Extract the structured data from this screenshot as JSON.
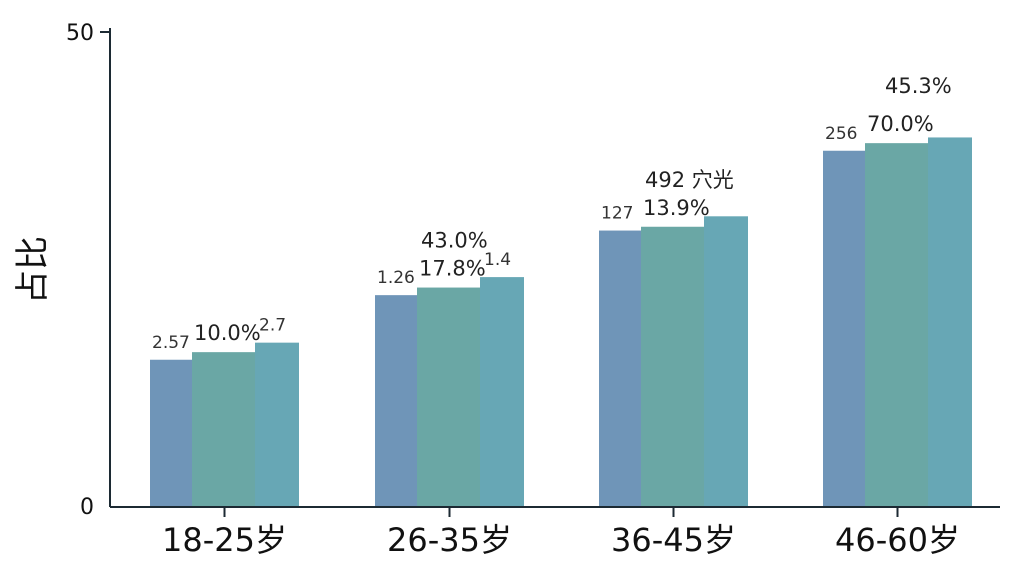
{
  "colors": {
    "series_a": "#6f95b8",
    "series_b": "#6aa7a5",
    "series_c": "#67a7b5",
    "axis": "#1c2a33"
  },
  "chart_data": {
    "type": "bar",
    "ylabel": "占比",
    "ylim": [
      0,
      50
    ],
    "yticks": [
      "0",
      "50"
    ],
    "categories": [
      "18-25岁",
      "26-35岁",
      "36-45岁",
      "46-60岁"
    ],
    "series": [
      {
        "values": [
          15.5,
          22.3,
          29.1,
          37.5
        ]
      },
      {
        "values": [
          16.3,
          23.1,
          29.5,
          38.3
        ]
      },
      {
        "values": [
          17.3,
          24.2,
          30.6,
          38.9
        ]
      }
    ],
    "bar_labels": [
      [
        "2.57",
        "10.0%",
        "2.7"
      ],
      [
        "1.26",
        "17.8%",
        "1.4"
      ],
      [
        "127",
        "13.9%",
        ""
      ],
      [
        "256",
        "70.0%",
        ""
      ]
    ],
    "top_labels": [
      "",
      "43.0%",
      "492 穴光",
      "45.3%"
    ]
  }
}
